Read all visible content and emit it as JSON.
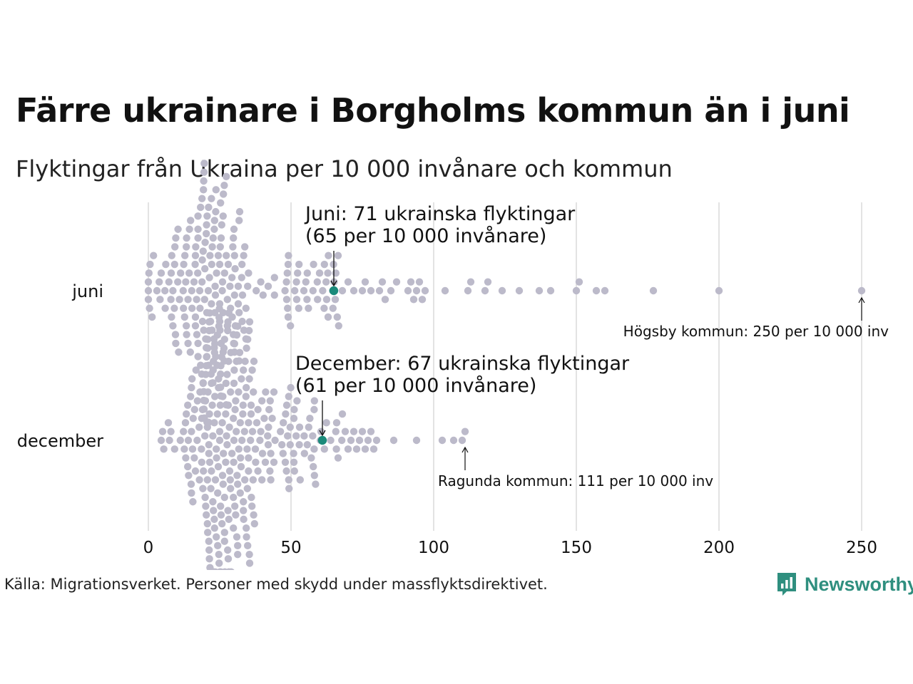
{
  "title": "Färre ukrainare i Borgholms kommun än i juni",
  "subtitle": "Flyktingar från Ukraina per 10 000 invånare och kommun",
  "source": "Källa: Migrationsverket. Personer med skydd under massflyktsdirektivet.",
  "brand": "Newsworthy",
  "colors": {
    "dot": "#bcbaca",
    "highlight": "#1a8a7a",
    "grid": "#d0d0d0",
    "brand": "#2f8f7f"
  },
  "chart_data": {
    "type": "scatter",
    "subtype": "beeswarm",
    "xlim": [
      0,
      260
    ],
    "x_ticks": [
      0,
      50,
      100,
      150,
      200,
      250
    ],
    "grid": "vertical",
    "series": [
      {
        "name": "juni",
        "values": [
          0.3,
          0.6,
          1.0,
          1.4,
          1.8,
          2.2,
          2.6,
          3.0,
          3.4,
          3.8,
          4.2,
          4.6,
          5.0,
          5.4,
          5.8,
          6.2,
          6.6,
          7.0,
          7.4,
          7.8,
          8.2,
          8.6,
          9.0,
          9.4,
          9.8,
          10.2,
          10.6,
          11.0,
          11.4,
          11.8,
          12.2,
          12.6,
          13.0,
          13.4,
          13.8,
          14.2,
          14.6,
          15.0,
          15.4,
          15.8,
          16.2,
          16.6,
          17.0,
          17.4,
          17.8,
          18.2,
          18.6,
          19.0,
          19.4,
          19.8,
          20.2,
          20.6,
          21.0,
          21.4,
          21.8,
          22.2,
          22.6,
          23.0,
          23.4,
          23.8,
          24.2,
          24.6,
          25.0,
          25.4,
          25.8,
          26.2,
          26.6,
          27.0,
          27.4,
          27.8,
          28.2,
          28.6,
          29.0,
          29.4,
          29.8,
          30.2,
          30.6,
          31.0,
          31.4,
          31.8,
          32.2,
          32.6,
          33.0,
          33.4,
          33.8,
          34.2,
          34.6,
          35.0,
          35.4,
          35.8,
          36.2,
          36.6,
          37.0,
          37.4,
          37.8,
          38.2,
          38.6,
          39.0,
          39.4,
          39.8,
          40.2,
          40.6,
          41.0,
          41.4,
          41.8,
          42.2,
          42.6,
          43.0,
          43.4,
          43.8,
          44.2,
          44.6,
          45.0,
          45.4,
          45.8,
          46.2,
          46.6,
          47.0,
          47.4,
          47.8,
          48.2,
          48.6,
          49.0,
          49.4,
          49.8,
          50.2,
          50.6,
          51.0,
          51.4,
          51.8,
          52.2,
          52.6,
          53.0,
          53.4,
          53.8,
          54.2,
          54.6,
          55.0,
          55.4,
          55.8,
          56.2,
          56.6,
          57.0,
          57.4,
          57.8,
          58.2,
          58.6,
          59.0,
          59.4,
          59.8,
          60.2,
          60.6,
          61.0,
          61.4,
          61.8,
          62.2,
          62.6,
          63.0,
          63.4,
          63.8,
          64.2,
          64.6,
          65.0,
          65.4,
          65.8,
          66.2,
          66.6,
          67.0,
          67.4,
          67.8,
          68.2,
          68.6,
          69.0,
          69.4,
          69.8,
          70.2,
          70.6,
          71.0,
          71.4,
          71.8,
          72.2,
          72.6,
          73.0,
          73.4,
          73.8,
          74.2,
          74.6,
          75.0,
          75.4,
          75.8,
          76.2,
          76.6,
          77.0,
          77.4,
          77.8,
          78.2,
          78.6,
          79.0,
          79.4,
          79.8,
          80.2,
          80.6,
          81.0,
          81.4,
          81.8,
          82.2,
          82.6,
          83.0,
          83.4,
          83.8,
          84.2,
          84.6,
          85.0,
          85.4,
          85.8,
          86.2,
          86.6,
          87.0,
          87.4,
          87.8,
          88.2,
          88.6,
          89.0,
          89.4,
          89.8,
          90.2,
          90.6,
          91.0,
          91.4,
          91.8,
          92.2,
          92.6,
          93.0,
          93.4,
          93.8,
          94.2,
          94.6,
          95.0,
          95.4,
          95.8,
          96.2,
          96.6,
          97.0,
          97.4,
          97.8,
          98.2,
          98.6,
          99.0,
          99.4,
          99.8,
          100.2,
          100.6,
          101.0,
          101.4,
          101.8,
          102.2,
          102.6,
          103.0,
          103.4,
          103.8,
          104.2,
          104.6,
          105.0,
          105.4,
          105.8,
          106.2,
          106.6,
          107.0,
          107.4,
          107.8,
          108.2,
          108.6,
          109.0,
          109.4,
          109.8,
          110.2,
          110.6,
          111.0,
          111.4,
          111.8,
          112.2,
          112.6,
          113.0,
          113.4,
          113.8,
          114.2,
          114.6,
          115.0,
          115.4,
          115.8,
          116.2,
          116.6,
          117.0,
          117.4,
          117.8,
          118.2,
          118.6,
          119.0,
          119.4,
          119.8,
          120.2,
          120.6,
          121.0,
          121.4,
          121.8,
          122.2,
          122.6,
          123.0,
          123.4,
          123.8,
          124.2,
          124.6,
          125.0,
          125.4,
          125.8,
          126.2,
          126.6,
          127.0,
          127.4,
          127.8,
          128.2,
          128.6,
          129.0,
          129.4,
          129.8,
          130.2,
          130.6,
          131.0,
          131.4,
          131.8,
          132.2,
          132.6,
          133.0,
          133.4,
          133.8,
          134.2,
          134.6,
          135.0,
          135.4,
          135.8,
          136.2,
          136.6,
          137.0,
          137.4,
          137.8,
          138.2,
          138.6,
          139.0,
          139.4,
          139.8,
          140.2,
          140.6,
          141.0,
          141.4,
          141.8,
          142.2,
          142.6,
          143.0,
          143.4,
          143.8,
          144.2,
          144.6,
          145.0,
          145.4,
          145.8,
          146.2,
          146.6,
          147.0,
          147.4,
          147.8,
          148.2,
          148.6,
          149.0,
          149.4,
          149.8,
          150.2,
          150.6,
          151.0,
          151.4,
          151.8,
          152.2,
          152.6,
          153.0,
          153.4,
          153.8,
          154.2,
          154.6,
          155.0,
          155.4,
          155.8,
          156.2,
          156.6,
          157.0,
          157.4,
          157.8,
          158.2,
          158.6,
          159.0,
          159.4,
          159.8,
          160.2,
          160.6,
          161.0,
          161.4,
          161.8,
          162.2,
          162.6,
          163.0,
          163.4,
          163.8,
          164.2,
          164.6,
          165.0,
          165.4,
          165.8,
          166.2,
          166.6,
          167.0,
          167.4,
          167.8,
          168.2,
          168.6,
          169.0,
          169.4,
          169.8,
          170.2,
          170.6,
          171.0,
          171.4,
          171.8,
          172.2,
          172.6,
          173.0,
          173.4,
          173.8,
          174.2,
          174.6,
          175.0,
          175.4,
          175.8,
          176.2,
          176.6,
          177.0,
          177.4,
          177.8,
          178.2,
          178.6,
          179.0,
          179.4,
          179.8,
          180.2,
          180.6,
          181.0,
          181.4,
          181.8,
          182.2,
          182.6,
          183.0,
          183.4,
          183.8,
          184.2,
          184.6,
          185.0,
          185.4,
          185.8,
          186.2,
          186.6,
          187.0,
          187.4,
          187.8,
          188.2,
          188.6,
          189.0,
          189.4,
          189.8,
          190.2,
          190.6,
          191.0,
          191.4,
          191.8,
          192.2,
          192.6,
          193.0,
          193.4,
          193.8,
          194.2,
          194.6,
          195.0,
          195.4,
          195.8,
          196.2,
          196.6,
          197.0,
          197.4,
          197.8,
          198.2,
          198.6,
          199.0,
          199.4,
          199.8,
          200.2,
          200.6,
          201.0,
          201.4,
          201.8,
          202.2,
          202.6,
          203.0,
          203.4,
          203.8,
          204.2,
          204.6,
          205.0,
          205.4,
          205.8,
          206.2,
          206.6,
          207.0,
          207.4,
          207.8,
          208.2,
          208.6,
          209.0,
          209.4,
          209.8,
          210.2,
          210.6,
          211.0,
          211.4,
          211.8,
          212.2,
          212.6,
          213.0,
          213.4,
          213.8,
          214.2,
          214.6,
          215.0,
          215.4,
          215.8,
          216.2,
          216.6,
          217.0,
          217.4,
          217.8,
          218.2,
          218.6,
          219.0,
          219.4,
          219.8,
          220.2,
          220.6,
          221.0,
          221.4,
          221.8,
          222.2,
          222.6,
          223.0,
          223.4,
          223.8,
          224.2,
          224.6,
          225.0,
          225.4,
          225.8,
          226.2,
          226.6,
          227.0,
          227.4,
          227.8,
          228.2,
          228.6,
          229.0,
          229.4,
          229.8,
          230.2,
          230.6,
          231.0,
          231.4,
          231.8,
          232.2,
          232.6,
          233.0,
          233.4,
          233.8,
          234.2,
          234.6,
          235.0,
          235.4,
          235.8,
          236.2,
          236.6,
          237.0,
          237.4,
          237.8,
          238.2,
          238.6,
          239.0,
          239.4,
          239.8,
          240.2,
          240.6,
          241.0,
          241.4,
          241.8,
          242.2,
          242.6,
          243.0,
          243.4,
          243.8,
          244.2,
          244.6,
          245.0,
          245.4,
          245.8,
          246.2,
          246.6,
          247.0,
          247.4,
          247.8,
          248.2,
          248.6,
          249.0,
          249.4,
          249.8,
          250.0
        ],
        "highlight": {
          "value": 65,
          "label": [
            "Juni: 71 ukrainska flyktingar",
            "(65 per 10 000 invånare)"
          ]
        },
        "max": {
          "value": 250,
          "label": "Högsby kommun: 250 per 10 000 inv"
        }
      },
      {
        "name": "december",
        "values": [],
        "highlight": {
          "value": 61,
          "label": [
            "December: 67 ukrainska flyktingar",
            "(61 per 10 000 invånare)"
          ]
        },
        "max": {
          "value": 111,
          "label": "Ragunda kommun: 111 per 10 000 inv"
        }
      }
    ]
  }
}
